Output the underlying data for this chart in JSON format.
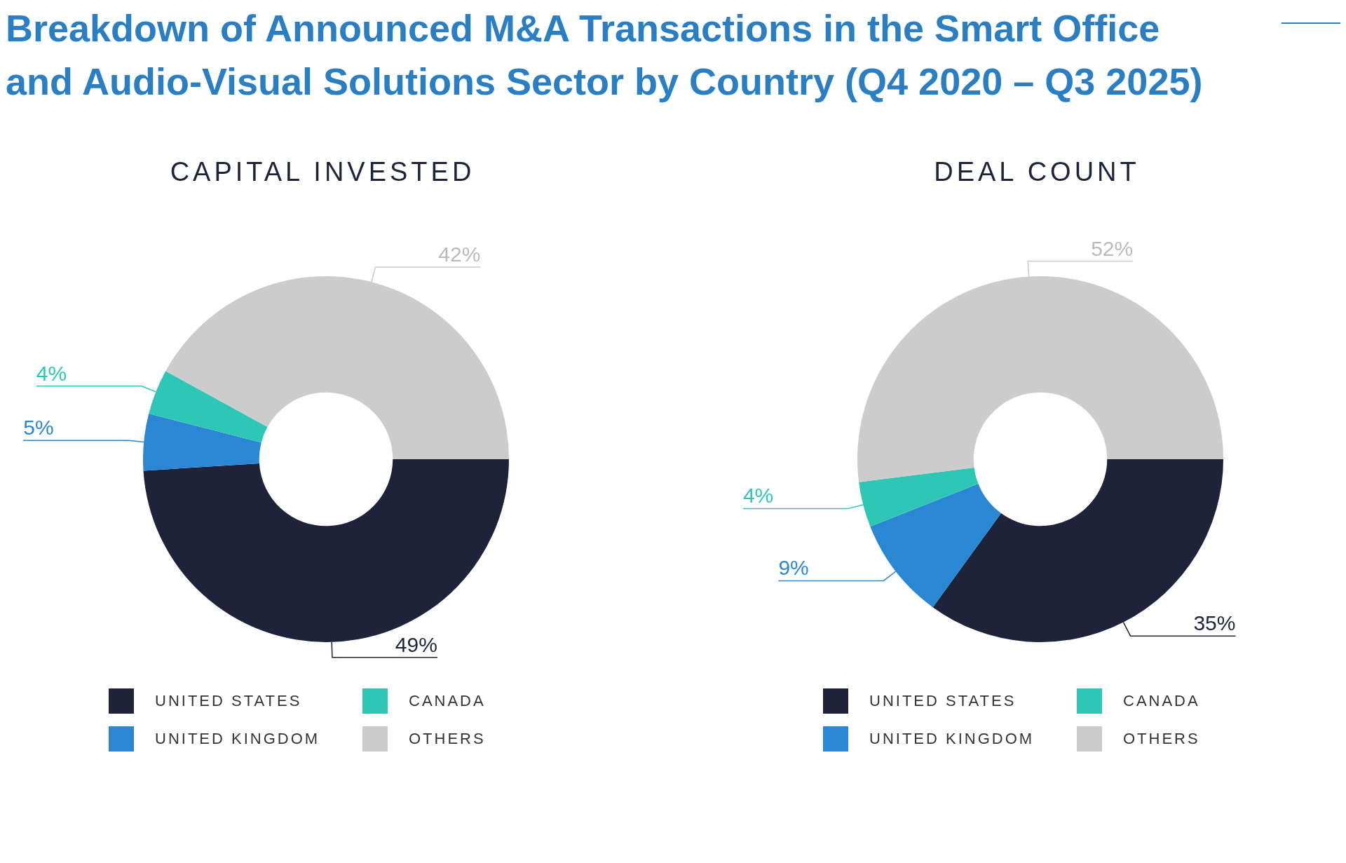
{
  "chart_data": [
    {
      "type": "donut",
      "title": "Breakdown of Announced M&A Transactions in the Smart Office and Audio-Visual Solutions Sector by Country (Q4 2020 – Q3 2025)",
      "subtitle": "CAPITAL INVESTED",
      "categories": [
        "UNITED STATES",
        "UNITED KINGDOM",
        "CANADA",
        "OTHERS"
      ],
      "values": [
        49,
        5,
        4,
        42
      ],
      "value_labels": [
        "49%",
        "5%",
        "4%",
        "42%"
      ],
      "colors": [
        "#1f2339",
        "#2a87d3",
        "#2ec7b5",
        "#cccccc"
      ],
      "legend": "bottom"
    },
    {
      "type": "donut",
      "title": "DEAL COUNT",
      "categories": [
        "UNITED STATES",
        "UNITED KINGDOM",
        "CANADA",
        "OTHERS"
      ],
      "values": [
        35,
        9,
        4,
        52
      ],
      "value_labels": [
        "35%",
        "9%",
        "4%",
        "52%"
      ],
      "colors": [
        "#1f2339",
        "#2a87d3",
        "#2ec7b5",
        "#cccccc"
      ],
      "legend": "bottom"
    }
  ]
}
